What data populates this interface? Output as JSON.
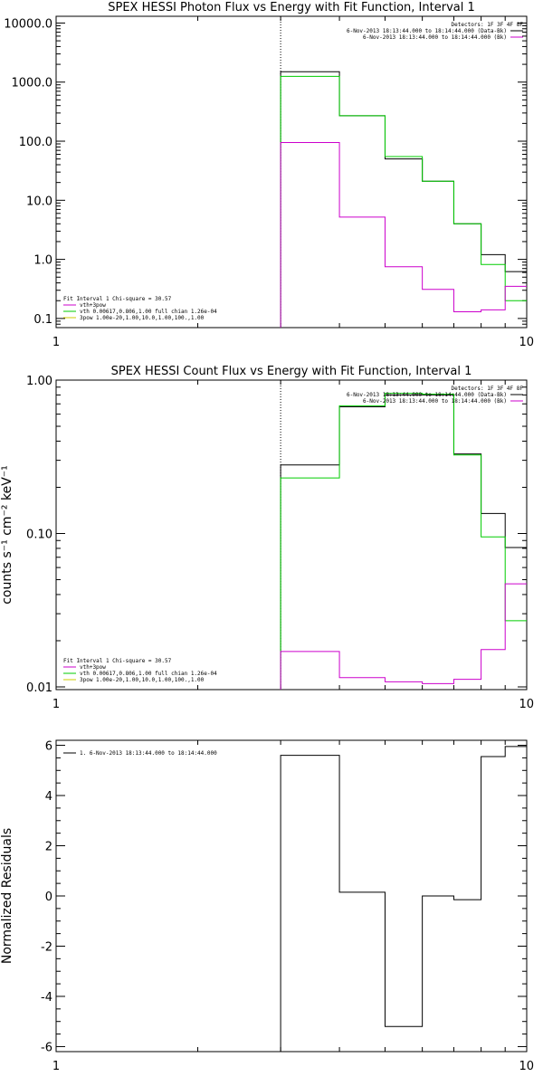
{
  "colors": {
    "data_black": "#000000",
    "fit_green": "#00cc00",
    "model_magenta": "#cc00cc",
    "yellow": "#cccc00"
  },
  "chart_data": [
    {
      "id": "photon",
      "type": "line",
      "title": "SPEX HESSI Photon Flux vs Energy with Fit Function, Interval 1",
      "ylabel": "",
      "xlabel": "",
      "xlog": true,
      "ylog": true,
      "xlim": [
        1,
        10
      ],
      "ylim": [
        0.07,
        13000
      ],
      "x_ticks": [
        "1",
        "10"
      ],
      "y_ticks": [
        {
          "v": 0.1,
          "label": "0.1"
        },
        {
          "v": 1,
          "label": "1.0"
        },
        {
          "v": 10,
          "label": "10.0"
        },
        {
          "v": 100,
          "label": "100.0"
        },
        {
          "v": 1000,
          "label": "1000.0"
        },
        {
          "v": 10000,
          "label": "10000.0"
        }
      ],
      "vline": 3,
      "bin_edges": [
        3,
        4,
        5,
        6,
        7,
        8,
        9,
        10
      ],
      "series": [
        {
          "key": "data",
          "color": "#000000",
          "values": [
            1500,
            270,
            50,
            21,
            4,
            1.2,
            0.62
          ]
        },
        {
          "key": "fit",
          "color": "#00cc00",
          "values": [
            1250,
            270,
            55,
            21,
            4,
            0.82,
            0.2
          ]
        },
        {
          "key": "model",
          "color": "#cc00cc",
          "values": [
            95,
            5.2,
            0.75,
            0.31,
            0.13,
            0.14,
            0.35
          ]
        }
      ],
      "legend_top": {
        "header": "Detectors: 1F 3F 4F 8F",
        "lines": [
          {
            "text": "6-Nov-2013 18:13:44.000 to 18:14:44.000 (Data-Bk)",
            "color": "#000000"
          },
          {
            "text": "6-Nov-2013 18:13:44.000 to 18:14:44.000 (Bk)",
            "color": "#cc00cc"
          }
        ]
      },
      "legend_bottom": {
        "header": "Fit Interval 1   Chi-square = 30.57",
        "lines": [
          {
            "text": "vth+3pow",
            "color": "#cc00cc"
          },
          {
            "text": "vth 0.00617,0.806,1.00   full chian 1.26e-04",
            "color": "#00cc00"
          },
          {
            "text": "3pow 1.00e-20,1.00,10.0,1.00,100.,1.00",
            "color": "#cccc00"
          }
        ]
      }
    },
    {
      "id": "count",
      "type": "line",
      "title": "SPEX HESSI Count Flux vs Energy with Fit Function, Interval 1",
      "ylabel": "counts s⁻¹ cm⁻² keV⁻¹",
      "xlabel": "",
      "xlog": true,
      "ylog": true,
      "xlim": [
        1,
        10
      ],
      "ylim": [
        0.0096,
        1.0
      ],
      "x_ticks": [
        "1",
        "10"
      ],
      "y_ticks": [
        {
          "v": 0.01,
          "label": "0.01"
        },
        {
          "v": 0.1,
          "label": "0.10"
        },
        {
          "v": 1,
          "label": "1.00"
        }
      ],
      "vline": 3,
      "bin_edges": [
        3,
        4,
        5,
        6,
        7,
        8,
        9,
        10
      ],
      "series": [
        {
          "key": "data",
          "color": "#000000",
          "values": [
            0.28,
            0.67,
            0.8,
            0.8,
            0.33,
            0.135,
            0.081
          ]
        },
        {
          "key": "fit",
          "color": "#00cc00",
          "values": [
            0.23,
            0.68,
            0.82,
            0.81,
            0.325,
            0.095,
            0.027
          ]
        },
        {
          "key": "model",
          "color": "#cc00cc",
          "values": [
            0.017,
            0.0115,
            0.0108,
            0.0105,
            0.0112,
            0.0175,
            0.047
          ]
        }
      ],
      "legend_top": {
        "header": "Detectors: 1F 3F 4F 8F",
        "lines": [
          {
            "text": "6-Nov-2013 18:13:44.000 to 18:14:44.000 (Data-Bk)",
            "color": "#000000"
          },
          {
            "text": "6-Nov-2013 18:13:44.000 to 18:14:44.000 (Bk)",
            "color": "#cc00cc"
          }
        ]
      },
      "legend_bottom": {
        "header": "Fit Interval 1   Chi-square = 30.57",
        "lines": [
          {
            "text": "vth+3pow",
            "color": "#cc00cc"
          },
          {
            "text": "vth 0.00617,0.806,1.00   full chian 1.26e-04",
            "color": "#00cc00"
          },
          {
            "text": "3pow 1.00e-20,1.00,10.0,1.00,100.,1.00",
            "color": "#cccc00"
          }
        ]
      }
    },
    {
      "id": "resid",
      "type": "line",
      "title": "",
      "ylabel": "Normalized Residuals",
      "xlabel": "",
      "xlog": true,
      "ylog": false,
      "xlim": [
        1,
        10
      ],
      "ylim": [
        -6.2,
        6.2
      ],
      "x_ticks": [
        "1",
        "10"
      ],
      "y_ticks": [
        {
          "v": -6,
          "label": "-6"
        },
        {
          "v": -4,
          "label": "-4"
        },
        {
          "v": -2,
          "label": "-2"
        },
        {
          "v": 0,
          "label": "0"
        },
        {
          "v": 2,
          "label": "2"
        },
        {
          "v": 4,
          "label": "4"
        },
        {
          "v": 6,
          "label": "6"
        }
      ],
      "bin_edges": [
        3,
        4,
        5,
        6,
        7,
        8,
        9,
        10
      ],
      "series": [
        {
          "key": "resid",
          "color": "#000000",
          "values": [
            5.6,
            0.15,
            -5.2,
            0.0,
            -0.15,
            5.55,
            5.95
          ]
        }
      ],
      "legend_top": {
        "header": "",
        "lines": [
          {
            "text": "1.  6-Nov-2013 18:13:44.000 to 18:14:44.000",
            "color": "#000000"
          }
        ]
      }
    }
  ]
}
